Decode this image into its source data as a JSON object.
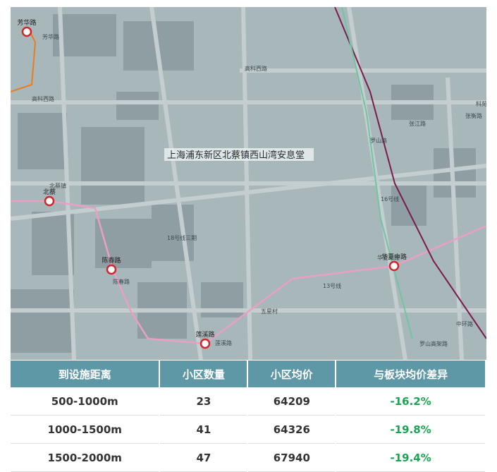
{
  "map": {
    "poi": "上海浦东新区北蔡镇西山湾安息堂",
    "stations": [
      "芳华路",
      "北蔡",
      "陈春路",
      "莲溪路",
      "华夏中路"
    ],
    "roads": [
      "高科西路",
      "高科西路",
      "张衡路",
      "科苑路",
      "罗山路",
      "五星村",
      "中环路",
      "罗山高架路",
      "13号线",
      "16号线",
      "18号线三期",
      "北蔡镇",
      "芳华路",
      "陈春路",
      "莲溪路",
      "华夏中路",
      "张江路"
    ]
  },
  "table": {
    "headers": [
      "到设施距离",
      "小区数量",
      "小区均价",
      "与板块均价差异"
    ],
    "rows": [
      [
        "500-1000m",
        "23",
        "64209",
        "-16.2%"
      ],
      [
        "1000-1500m",
        "41",
        "64326",
        "-19.8%"
      ],
      [
        "1500-2000m",
        "47",
        "67940",
        "-19.4%"
      ]
    ]
  }
}
